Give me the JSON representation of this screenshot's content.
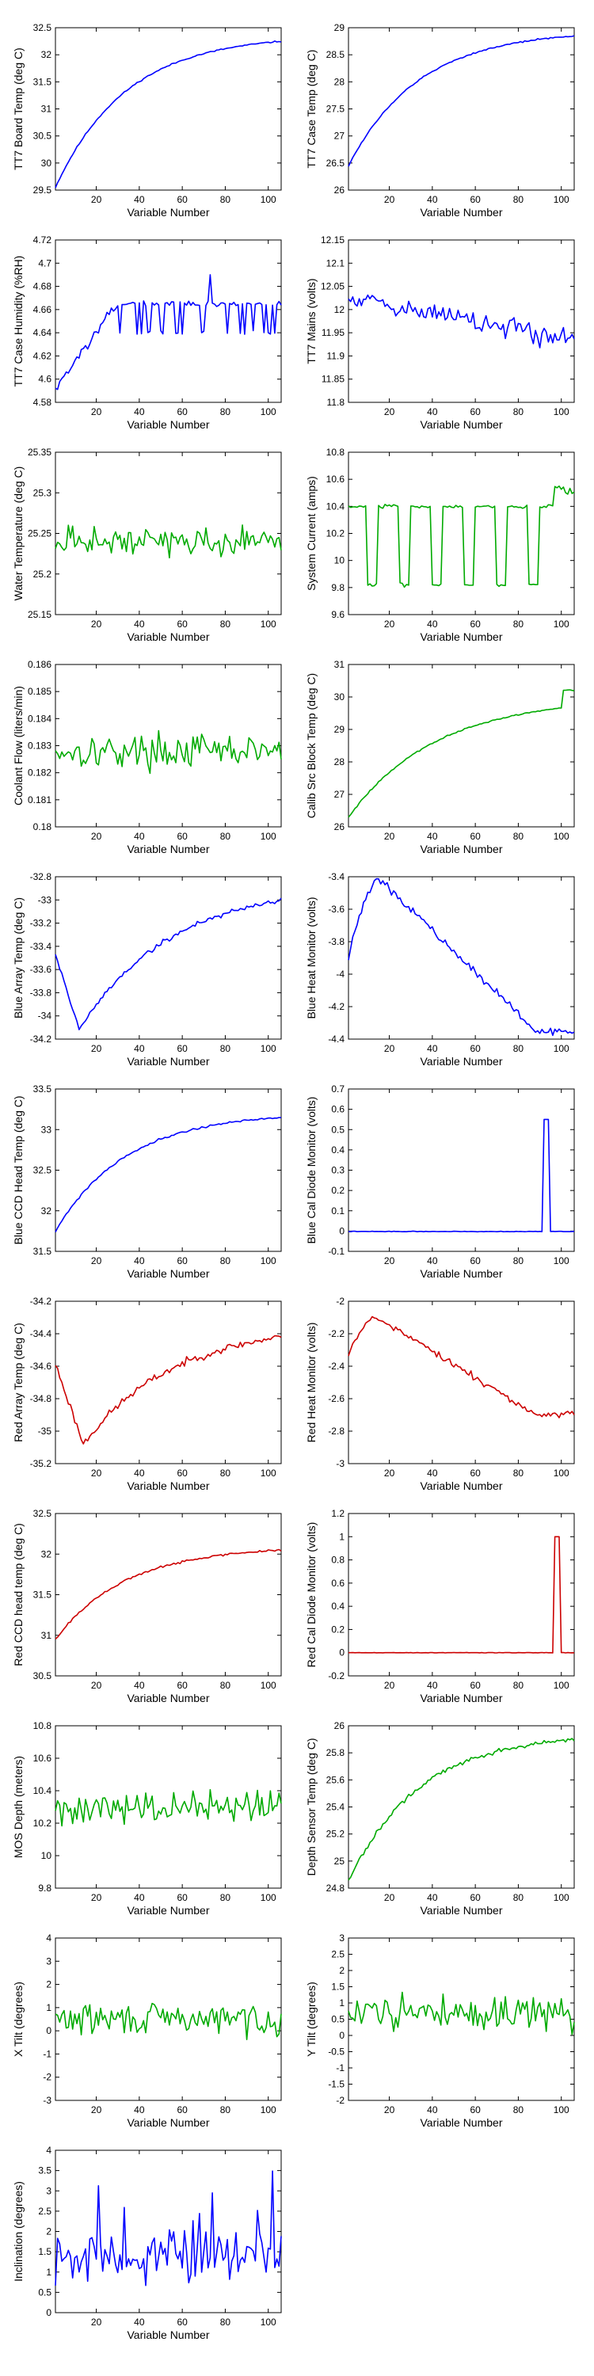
{
  "chart_data": [
    {
      "type": "line",
      "xlabel": "Variable Number",
      "ylabel": "TT7 Board Temp (deg C)",
      "color": "#0000ff",
      "xlim": [
        1,
        106
      ],
      "ylim": [
        29.5,
        32.5
      ],
      "xticks": [
        20,
        40,
        60,
        80,
        100
      ],
      "yticks": [
        29.5,
        30,
        30.5,
        31,
        31.5,
        32,
        32.5
      ],
      "ytick_labels": [
        "29.5",
        "30",
        "30.5",
        "31",
        "31.5",
        "32",
        "32.5"
      ],
      "style": "rise_sat",
      "start": 29.55,
      "end": 32.25,
      "noise": 0.02,
      "seed": 11
    },
    {
      "type": "line",
      "xlabel": "Variable Number",
      "ylabel": "TT7 Case Temp (deg C)",
      "color": "#0000ff",
      "xlim": [
        1,
        106
      ],
      "ylim": [
        26,
        29
      ],
      "xticks": [
        20,
        40,
        60,
        80,
        100
      ],
      "yticks": [
        26,
        26.5,
        27,
        27.5,
        28,
        28.5,
        29
      ],
      "ytick_labels": [
        "26",
        "26.5",
        "27",
        "27.5",
        "28",
        "28.5",
        "29"
      ],
      "style": "rise_sat",
      "start": 26.45,
      "end": 28.85,
      "noise": 0.02,
      "seed": 12
    },
    {
      "type": "line",
      "xlabel": "Variable Number",
      "ylabel": "TT7 Case Humidity (%RH)",
      "color": "#0000ff",
      "xlim": [
        1,
        106
      ],
      "ylim": [
        4.58,
        4.72
      ],
      "xticks": [
        20,
        40,
        60,
        80,
        100
      ],
      "yticks": [
        4.58,
        4.6,
        4.62,
        4.64,
        4.66,
        4.68,
        4.7,
        4.72
      ],
      "ytick_labels": [
        "4.58",
        "4.6",
        "4.62",
        "4.64",
        "4.66",
        "4.68",
        "4.7",
        "4.72"
      ],
      "style": "humid",
      "start": 4.59,
      "end": 4.665,
      "low": 4.64,
      "noise": 0.003,
      "seed": 13
    },
    {
      "type": "line",
      "xlabel": "Variable Number",
      "ylabel": "TT7 Mains  (volts)",
      "color": "#0000ff",
      "xlim": [
        1,
        106
      ],
      "ylim": [
        11.8,
        12.15
      ],
      "xticks": [
        20,
        40,
        60,
        80,
        100
      ],
      "yticks": [
        11.8,
        11.85,
        11.9,
        11.95,
        12,
        12.05,
        12.1,
        12.15
      ],
      "ytick_labels": [
        "11.8",
        "11.85",
        "11.9",
        "11.95",
        "12",
        "12.05",
        "12.1",
        "12.15"
      ],
      "style": "noisy_drift",
      "start": 12.03,
      "end": 11.93,
      "noise": 0.035,
      "seed": 14
    },
    {
      "type": "line",
      "xlabel": "Variable Number",
      "ylabel": "Water Temperature (deg C)",
      "color": "#00aa00",
      "xlim": [
        1,
        106
      ],
      "ylim": [
        25.15,
        25.35
      ],
      "xticks": [
        20,
        40,
        60,
        80,
        100
      ],
      "yticks": [
        25.15,
        25.2,
        25.25,
        25.3,
        25.35
      ],
      "ytick_labels": [
        "25.15",
        "25.2",
        "25.25",
        "25.3",
        "25.35"
      ],
      "style": "noise",
      "mean": 25.24,
      "noise": 0.025,
      "seed": 15
    },
    {
      "type": "line",
      "xlabel": "Variable Number",
      "ylabel": "System Current (amps)",
      "color": "#00aa00",
      "xlim": [
        1,
        106
      ],
      "ylim": [
        9.6,
        10.8
      ],
      "xticks": [
        20,
        40,
        60,
        80,
        100
      ],
      "yticks": [
        9.6,
        9.8,
        10,
        10.2,
        10.4,
        10.6,
        10.8
      ],
      "ytick_labels": [
        "9.6",
        "9.8",
        "10",
        "10.2",
        "10.4",
        "10.6",
        "10.8"
      ],
      "style": "switch",
      "high": 10.4,
      "low": 9.82,
      "noise": 0.02,
      "seed": 16
    },
    {
      "type": "line",
      "xlabel": "Variable Number",
      "ylabel": "Coolant Flow (liters/min)",
      "color": "#00aa00",
      "xlim": [
        1,
        106
      ],
      "ylim": [
        0.18,
        0.186
      ],
      "xticks": [
        20,
        40,
        60,
        80,
        100
      ],
      "yticks": [
        0.18,
        0.181,
        0.182,
        0.183,
        0.184,
        0.185,
        0.186
      ],
      "ytick_labels": [
        "0.18",
        "0.181",
        "0.182",
        "0.183",
        "0.184",
        "0.185",
        "0.186"
      ],
      "style": "noise",
      "mean": 0.1828,
      "noise": 0.0009,
      "seed": 17
    },
    {
      "type": "line",
      "xlabel": "Variable Number",
      "ylabel": "Calib Src Block Temp (deg C)",
      "color": "#00aa00",
      "xlim": [
        1,
        106
      ],
      "ylim": [
        26,
        31
      ],
      "xticks": [
        20,
        40,
        60,
        80,
        100
      ],
      "yticks": [
        26,
        27,
        28,
        29,
        30,
        31
      ],
      "ytick_labels": [
        "26",
        "27",
        "28",
        "29",
        "30",
        "31"
      ],
      "style": "rise_sat_jump",
      "start": 26.3,
      "end": 29.7,
      "jump": 30.2,
      "noise": 0.03,
      "seed": 18
    },
    {
      "type": "line",
      "xlabel": "Variable Number",
      "ylabel": "Blue Array Temp (deg C)",
      "color": "#0000ff",
      "xlim": [
        1,
        106
      ],
      "ylim": [
        -34.2,
        -32.8
      ],
      "xticks": [
        20,
        40,
        60,
        80,
        100
      ],
      "yticks": [
        -34.2,
        -34,
        -33.8,
        -33.6,
        -33.4,
        -33.2,
        -33,
        -32.8
      ],
      "ytick_labels": [
        "-34.2",
        "-34",
        "-33.8",
        "-33.6",
        "-33.4",
        "-33.2",
        "-33",
        "-32.8"
      ],
      "style": "dip",
      "start": -33.4,
      "min": -34.12,
      "minx": 12,
      "end": -33.0,
      "noise": 0.035,
      "seed": 19
    },
    {
      "type": "line",
      "xlabel": "Variable Number",
      "ylabel": "Blue Heat Monitor (volts)",
      "color": "#0000ff",
      "xlim": [
        1,
        106
      ],
      "ylim": [
        -4.4,
        -3.4
      ],
      "xticks": [
        20,
        40,
        60,
        80,
        100
      ],
      "yticks": [
        -4.4,
        -4.2,
        -4,
        -3.8,
        -3.6,
        -3.4
      ],
      "ytick_labels": [
        "-4.4",
        "-4.2",
        "-4",
        "-3.8",
        "-3.6",
        "-3.4"
      ],
      "style": "peak",
      "start": -3.95,
      "max": -3.42,
      "maxx": 16,
      "end": -4.35,
      "noise": 0.035,
      "seed": 20
    },
    {
      "type": "line",
      "xlabel": "Variable Number",
      "ylabel": "Blue CCD Head Temp (deg C)",
      "color": "#0000ff",
      "xlim": [
        1,
        106
      ],
      "ylim": [
        31.5,
        33.5
      ],
      "xticks": [
        20,
        40,
        60,
        80,
        100
      ],
      "yticks": [
        31.5,
        32,
        32.5,
        33,
        33.5
      ],
      "ytick_labels": [
        "31.5",
        "32",
        "32.5",
        "33",
        "33.5"
      ],
      "style": "rise_sat",
      "start": 31.75,
      "end": 33.15,
      "noise": 0.02,
      "seed": 21
    },
    {
      "type": "line",
      "xlabel": "Variable Number",
      "ylabel": "Blue Cal Diode Monitor (volts)",
      "color": "#0000ff",
      "xlim": [
        1,
        106
      ],
      "ylim": [
        -0.1,
        0.7
      ],
      "xticks": [
        20,
        40,
        60,
        80,
        100
      ],
      "yticks": [
        -0.1,
        0,
        0.1,
        0.2,
        0.3,
        0.4,
        0.5,
        0.6,
        0.7
      ],
      "ytick_labels": [
        "-0.1",
        "0",
        "0.1",
        "0.2",
        "0.3",
        "0.4",
        "0.5",
        "0.6",
        "0.7"
      ],
      "style": "spike",
      "base": -0.002,
      "spike_from": 92,
      "spike_to": 94,
      "spike": 0.55,
      "noise": 0.002,
      "seed": 22
    },
    {
      "type": "line",
      "xlabel": "Variable Number",
      "ylabel": "Red Array Temp (deg C)",
      "color": "#cc0000",
      "xlim": [
        1,
        106
      ],
      "ylim": [
        -35.2,
        -34.2
      ],
      "xticks": [
        20,
        40,
        60,
        80,
        100
      ],
      "yticks": [
        -35.2,
        -35,
        -34.8,
        -34.6,
        -34.4,
        -34.2
      ],
      "ytick_labels": [
        "-35.2",
        "-35",
        "-34.8",
        "-34.6",
        "-34.4",
        "-34.2"
      ],
      "style": "dip",
      "start": -34.55,
      "min": -35.08,
      "minx": 14,
      "end": -34.42,
      "noise": 0.035,
      "seed": 23
    },
    {
      "type": "line",
      "xlabel": "Variable Number",
      "ylabel": "Red Heat Monitor (volts)",
      "color": "#cc0000",
      "xlim": [
        1,
        106
      ],
      "ylim": [
        -3,
        -2
      ],
      "xticks": [
        20,
        40,
        60,
        80,
        100
      ],
      "yticks": [
        -3,
        -2.8,
        -2.6,
        -2.4,
        -2.2,
        -2
      ],
      "ytick_labels": [
        "-3",
        "-2.8",
        "-2.6",
        "-2.4",
        "-2.2",
        "-2"
      ],
      "style": "peak",
      "start": -2.35,
      "max": -2.1,
      "maxx": 15,
      "end": -2.7,
      "noise": 0.035,
      "seed": 24
    },
    {
      "type": "line",
      "xlabel": "Variable Number",
      "ylabel": "Red CCD head temp (deg C)",
      "color": "#cc0000",
      "xlim": [
        1,
        106
      ],
      "ylim": [
        30.5,
        32.5
      ],
      "xticks": [
        20,
        40,
        60,
        80,
        100
      ],
      "yticks": [
        30.5,
        31,
        31.5,
        32,
        32.5
      ],
      "ytick_labels": [
        "30.5",
        "31",
        "31.5",
        "32",
        "32.5"
      ],
      "style": "rise_sat",
      "start": 30.95,
      "end": 32.05,
      "noise": 0.02,
      "seed": 25
    },
    {
      "type": "line",
      "xlabel": "Variable Number",
      "ylabel": "Red Cal Diode Monitor (volts)",
      "color": "#cc0000",
      "xlim": [
        1,
        106
      ],
      "ylim": [
        -0.2,
        1.2
      ],
      "xticks": [
        20,
        40,
        60,
        80,
        100
      ],
      "yticks": [
        -0.2,
        0,
        0.2,
        0.4,
        0.6,
        0.8,
        1,
        1.2
      ],
      "ytick_labels": [
        "-0.2",
        "0",
        "0.2",
        "0.4",
        "0.6",
        "0.8",
        "1",
        "1.2"
      ],
      "style": "spike",
      "base": 0.0,
      "spike_from": 97,
      "spike_to": 99,
      "spike": 1.0,
      "noise": 0.003,
      "seed": 26
    },
    {
      "type": "line",
      "xlabel": "Variable Number",
      "ylabel": "MOS Depth  (meters)",
      "color": "#00aa00",
      "xlim": [
        1,
        106
      ],
      "ylim": [
        9.8,
        10.8
      ],
      "xticks": [
        20,
        40,
        60,
        80,
        100
      ],
      "yticks": [
        9.8,
        10,
        10.2,
        10.4,
        10.6,
        10.8
      ],
      "ytick_labels": [
        "9.8",
        "10",
        "10.2",
        "10.4",
        "10.6",
        "10.8"
      ],
      "style": "noise",
      "mean": 10.3,
      "noise": 0.16,
      "seed": 27
    },
    {
      "type": "line",
      "xlabel": "Variable Number",
      "ylabel": "Depth Sensor Temp (deg C)",
      "color": "#00aa00",
      "xlim": [
        1,
        106
      ],
      "ylim": [
        24.8,
        26
      ],
      "xticks": [
        20,
        40,
        60,
        80,
        100
      ],
      "yticks": [
        24.8,
        25,
        25.2,
        25.4,
        25.6,
        25.8,
        26
      ],
      "ytick_labels": [
        "24.8",
        "25",
        "25.2",
        "25.4",
        "25.6",
        "25.8",
        "26"
      ],
      "style": "rise_sat",
      "start": 24.85,
      "end": 25.9,
      "noise": 0.025,
      "seed": 28
    },
    {
      "type": "line",
      "xlabel": "Variable Number",
      "ylabel": "X Tilt  (degrees)",
      "color": "#00aa00",
      "xlim": [
        1,
        106
      ],
      "ylim": [
        -3,
        4
      ],
      "xticks": [
        20,
        40,
        60,
        80,
        100
      ],
      "yticks": [
        -3,
        -2,
        -1,
        0,
        1,
        2,
        3,
        4
      ],
      "ytick_labels": [
        "-3",
        "-2",
        "-1",
        "0",
        "1",
        "2",
        "3",
        "4"
      ],
      "style": "noise",
      "mean": 0.5,
      "noise": 1.0,
      "seed": 29
    },
    {
      "type": "line",
      "xlabel": "Variable Number",
      "ylabel": "Y Tilt  (degrees)",
      "color": "#00aa00",
      "xlim": [
        1,
        106
      ],
      "ylim": [
        -2,
        3
      ],
      "xticks": [
        20,
        40,
        60,
        80,
        100
      ],
      "yticks": [
        -2,
        -1.5,
        -1,
        -0.5,
        0,
        0.5,
        1,
        1.5,
        2,
        2.5,
        3
      ],
      "ytick_labels": [
        "-2",
        "-1.5",
        "-1",
        "-0.5",
        "0",
        "0.5",
        "1",
        "1.5",
        "2",
        "2.5",
        "3"
      ],
      "style": "noise",
      "mean": 0.7,
      "noise": 0.75,
      "seed": 30
    },
    {
      "type": "line",
      "xlabel": "Variable Number",
      "ylabel": "Inclination  (degrees)",
      "color": "#0000ff",
      "xlim": [
        1,
        106
      ],
      "ylim": [
        0,
        4
      ],
      "xticks": [
        20,
        40,
        60,
        80,
        100
      ],
      "yticks": [
        0,
        0.5,
        1,
        1.5,
        2,
        2.5,
        3,
        3.5,
        4
      ],
      "ytick_labels": [
        "0",
        "0.5",
        "1",
        "1.5",
        "2",
        "2.5",
        "3",
        "3.5",
        "4"
      ],
      "style": "noise_pos",
      "mean": 1.3,
      "noise": 0.85,
      "seed": 31
    }
  ]
}
